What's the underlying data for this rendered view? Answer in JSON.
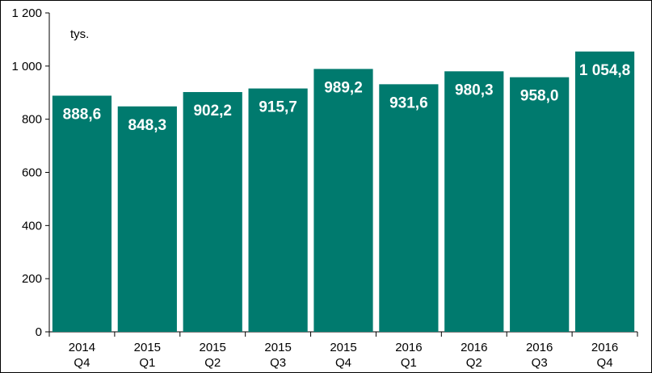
{
  "chart_data": {
    "type": "bar",
    "categories": [
      [
        "2014",
        "Q4"
      ],
      [
        "2015",
        "Q1"
      ],
      [
        "2015",
        "Q2"
      ],
      [
        "2015",
        "Q3"
      ],
      [
        "2015",
        "Q4"
      ],
      [
        "2016",
        "Q1"
      ],
      [
        "2016",
        "Q2"
      ],
      [
        "2016",
        "Q3"
      ],
      [
        "2016",
        "Q4"
      ]
    ],
    "values": [
      888.6,
      848.3,
      902.2,
      915.7,
      989.2,
      931.6,
      980.3,
      958.0,
      1054.8
    ],
    "data_labels": [
      "888,6",
      "848,3",
      "902,2",
      "915,7",
      "989,2",
      "931,6",
      "980,3",
      "958,0",
      "1 054,8"
    ],
    "unit": "tys.",
    "ylim": [
      0,
      1200
    ],
    "yticks": [
      0,
      200,
      400,
      600,
      800,
      1000,
      1200
    ],
    "ytick_labels": [
      "0",
      "200",
      "400",
      "600",
      "800",
      "1 000",
      "1 200"
    ],
    "bar_color": "#007A6E",
    "grid": false,
    "legend": "none"
  }
}
